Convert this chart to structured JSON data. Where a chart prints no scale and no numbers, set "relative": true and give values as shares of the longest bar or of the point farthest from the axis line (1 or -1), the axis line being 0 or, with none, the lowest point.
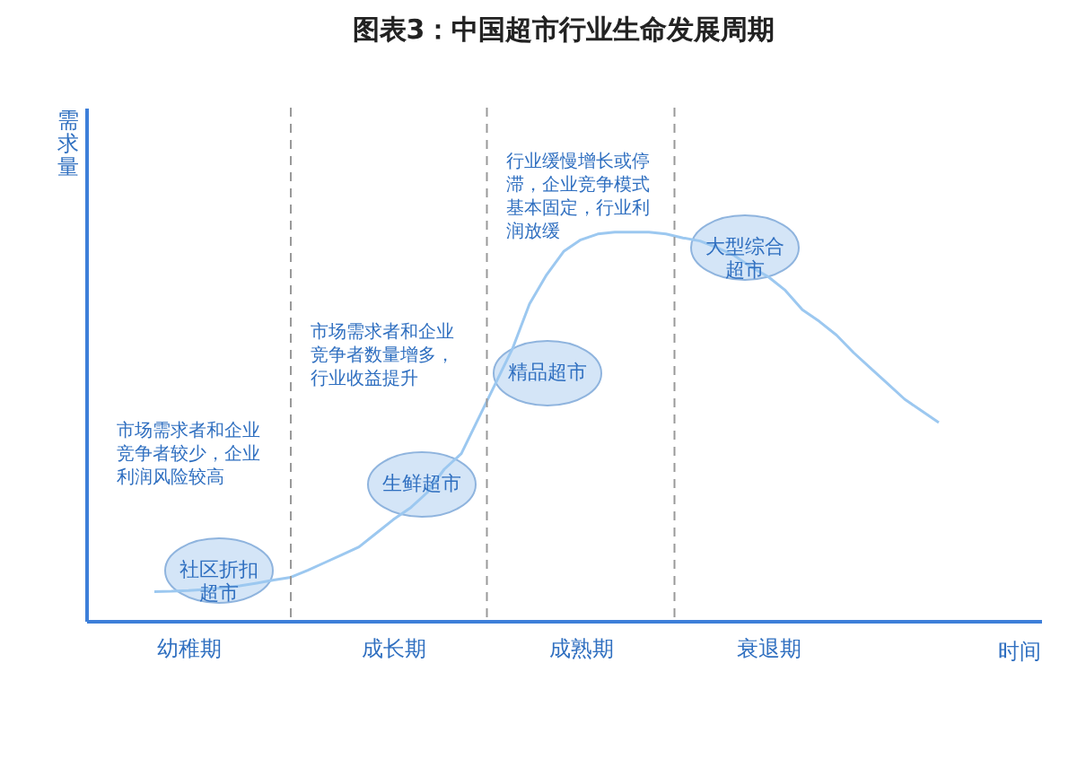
{
  "chart_data": {
    "type": "line",
    "title": "图表3：中国超市行业生命发展周期",
    "xlabel": "时间",
    "ylabel": "需求量",
    "relative": true,
    "categories": [
      null,
      null,
      null,
      null,
      null,
      null,
      "幼稚期",
      null,
      null,
      null,
      null,
      null,
      null,
      null,
      null,
      null,
      null,
      null,
      "成长期",
      null,
      null,
      null,
      null,
      null,
      null,
      null,
      null,
      null,
      null,
      "成熟期",
      null,
      null,
      null,
      null,
      null,
      null,
      null,
      null,
      null,
      null,
      "衰退期",
      null,
      null,
      null,
      null,
      null,
      null,
      null,
      null,
      null,
      null,
      null,
      null,
      null,
      null,
      null
    ],
    "series": [
      {
        "color": "#9cc8f0",
        "values": [
          null,
          null,
          null,
          null,
          0.075,
          0.076,
          0.078,
          0.081,
          0.085,
          0.09,
          0.097,
          0.105,
          0.112,
          0.13,
          0.15,
          0.17,
          0.19,
          0.225,
          0.26,
          0.29,
          0.33,
          0.39,
          0.43,
          0.52,
          0.61,
          0.7,
          0.815,
          0.89,
          0.95,
          0.98,
          0.995,
          1,
          1,
          1,
          0.995,
          0.985,
          0.977,
          0.96,
          0.94,
          0.91,
          0.885,
          0.85,
          0.8,
          0.77,
          0.735,
          0.69,
          0.65,
          0.61,
          0.57,
          0.54,
          0.51,
          null,
          null,
          null,
          null,
          null
        ]
      }
    ],
    "annotations": [
      "社区折扣超市",
      "生鲜超市",
      "精品超市",
      "大型综合超市",
      "市场需求者和企业竞争者较少，企业利润风险较高",
      "市场需求者和企业竞争者数量增多，行业收益提升",
      "行业缓慢增长或停滞，企业竞争模式基本固定，行业利润放缓"
    ]
  }
}
